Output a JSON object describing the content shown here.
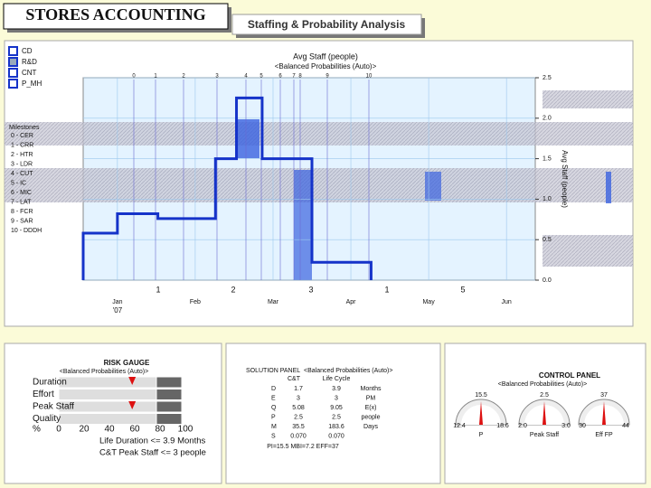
{
  "header": {
    "title": "STORES ACCOUNTING",
    "tab": "Staffing & Probability Analysis"
  },
  "legend": [
    "CD",
    "R&D",
    "CNT",
    "P_MH"
  ],
  "milestones": {
    "title": "Milestones",
    "items": [
      "0 - CER",
      "1 - CRR",
      "2 - HTR",
      "3 - LDR",
      "4 - CUT",
      "5 - IC",
      "6 - MIC",
      "7 - LAT",
      "8 - FCR",
      "9 - SAR",
      "10 - DDDH"
    ]
  },
  "chart_data": {
    "type": "line",
    "title": "Avg Staff (people)",
    "subtitle": "<Balanced Probabilities (Auto)>",
    "y_label": "Avg Staff (people)",
    "year_label": "'07",
    "milestone_ticks": [
      "0",
      "1",
      "2",
      "3",
      "4",
      "5",
      "6",
      "7",
      "8",
      "9",
      "10"
    ],
    "phase_ticks": [
      "1",
      "2",
      "3",
      "1",
      "5"
    ],
    "x": [
      -0.44,
      -0.44,
      0,
      0,
      0.52,
      0.52,
      1.26,
      1.26,
      1.53,
      1.53,
      1.86,
      1.86,
      2.5,
      2.5,
      3.26,
      3.26
    ],
    "series": [
      {
        "color": "#1533c9",
        "values": [
          0,
          0.58,
          0.58,
          0.82,
          0.82,
          0.76,
          0.76,
          1.5,
          1.5,
          2.25,
          2.25,
          1.5,
          1.5,
          0.22,
          0.22,
          0
        ]
      }
    ],
    "xlim": [
      -0.44,
      5.37
    ],
    "xticks": [
      {
        "value": 0,
        "label": "Jan"
      },
      {
        "value": 1,
        "label": "Feb"
      },
      {
        "value": 2,
        "label": "Mar"
      },
      {
        "value": 3,
        "label": "Apr"
      },
      {
        "value": 4,
        "label": "May"
      },
      {
        "value": 5,
        "label": "Jun"
      }
    ],
    "ylim": [
      0,
      2.5
    ],
    "yticks": [
      {
        "value": 0,
        "label": "0.0"
      },
      0.5,
      {
        "value": 1,
        "label": "1.0"
      },
      1.5,
      {
        "value": 2,
        "label": "2.0"
      },
      2.5
    ],
    "grid": true
  },
  "risk_gauge": {
    "title": "RISK GAUGE",
    "subtitle": "<Balanced Probabilities (Auto)>",
    "rows": [
      "Duration",
      "Effort",
      "Peak Staff",
      "Quality"
    ],
    "markers": [
      58,
      null,
      58,
      null
    ],
    "axis_label": "%",
    "ticks": [
      0,
      20,
      40,
      60,
      80,
      100
    ],
    "notes": [
      "Life Duration <= 3.9 Months",
      "C&T Peak Staff <= 3 people"
    ]
  },
  "solution": {
    "title": "SOLUTION PANEL",
    "subtitle": "<Balanced Probabilities (Auto)>",
    "columns": [
      "C&T",
      "Life Cycle"
    ],
    "rows": [
      [
        "D",
        "1.7",
        "3.9",
        "Months"
      ],
      [
        "E",
        "3",
        "3",
        "PM"
      ],
      [
        "Q",
        "5.08",
        "9.05",
        "E(x)"
      ],
      [
        "P",
        "2.5",
        "2.5",
        "people"
      ],
      [
        "M",
        "35.5",
        "183.6",
        "Days"
      ],
      [
        "S",
        "0.070",
        "0.070"
      ]
    ],
    "footer": "PI=15.5   MBI=7.2   EFF=37"
  },
  "control": {
    "title": "CONTROL PANEL",
    "subtitle": "<Balanced Probabilities (Auto)>",
    "gauges": [
      {
        "label": "P",
        "value": "15.5",
        "min": "12.4",
        "max": "18.6"
      },
      {
        "label": "Peak Staff",
        "value": "2.5",
        "min": "2.0",
        "max": "3.0"
      },
      {
        "label": "Eff FP",
        "value": "37",
        "min": "30",
        "max": "44"
      }
    ]
  }
}
